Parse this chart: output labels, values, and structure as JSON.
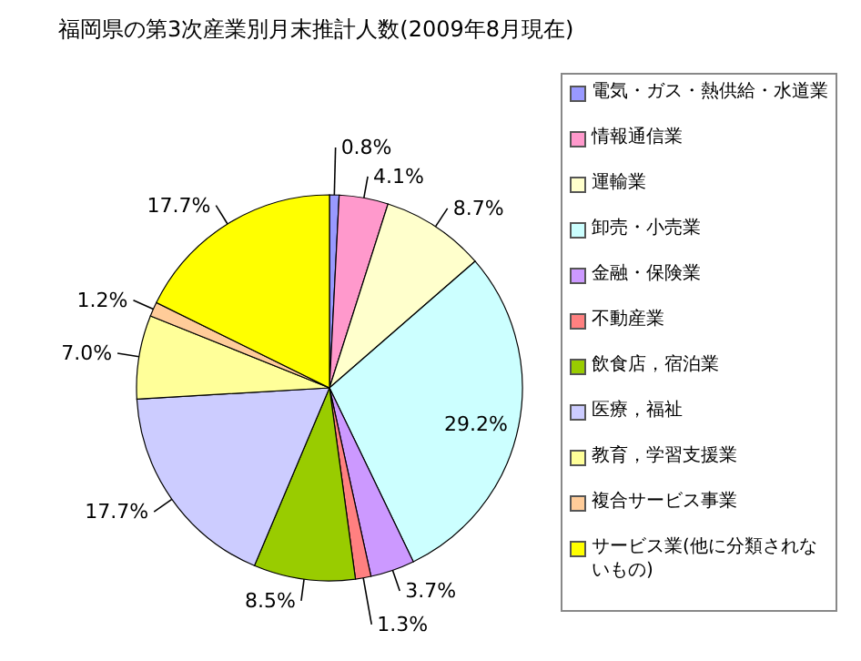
{
  "chart_data": {
    "type": "pie",
    "title": "福岡県の第3次産業別月末推計人数(2009年8月現在)",
    "categories": [
      "電気・ガス・熱供給・水道業",
      "情報通信業",
      "運輸業",
      "卸売・小売業",
      "金融・保険業",
      "不動産業",
      "飲食店，宿泊業",
      "医療，福祉",
      "教育，学習支援業",
      "複合サービス事業",
      "サービス業(他に分類されないもの)"
    ],
    "values": [
      0.8,
      4.1,
      8.7,
      29.2,
      3.7,
      1.3,
      8.5,
      17.7,
      7.0,
      1.2,
      17.7
    ],
    "value_labels": [
      "0.8%",
      "4.1%",
      "8.7%",
      "29.2%",
      "3.7%",
      "1.3%",
      "8.5%",
      "17.7%",
      "7.0%",
      "1.2%",
      "17.7%"
    ],
    "colors": [
      "#9999ff",
      "#ff99cc",
      "#ffffcc",
      "#ccffff",
      "#cc99ff",
      "#ff8080",
      "#99cc00",
      "#ccccff",
      "#ffff99",
      "#ffcc99",
      "#ffff00"
    ],
    "legend": "right"
  }
}
